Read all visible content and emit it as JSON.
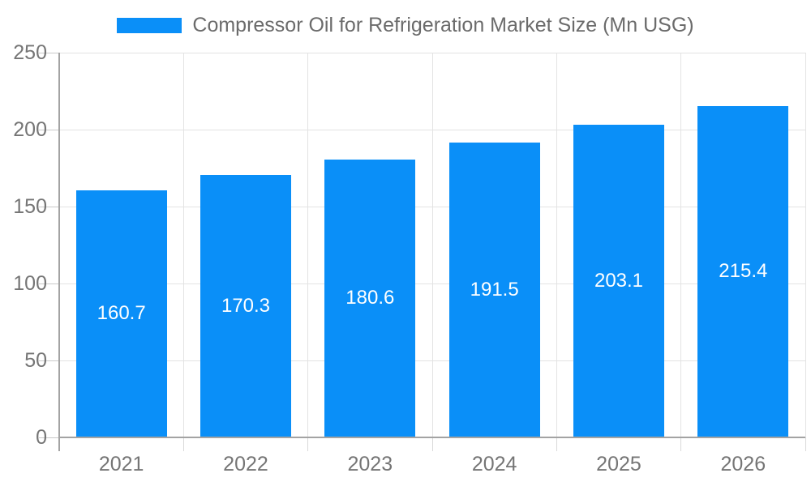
{
  "chart_data": {
    "type": "bar",
    "title": "Compressor Oil for Refrigeration Market Size (Mn USG)",
    "categories": [
      "2021",
      "2022",
      "2023",
      "2024",
      "2025",
      "2026"
    ],
    "series": [
      {
        "name": "Compressor Oil for Refrigeration Market Size (Mn USG)",
        "values": [
          160.7,
          170.3,
          180.6,
          191.5,
          203.1,
          215.4
        ]
      }
    ],
    "value_labels": [
      "160.7",
      "170.3",
      "180.6",
      "191.5",
      "203.1",
      "215.4"
    ],
    "xlabel": "",
    "ylabel": "",
    "ylim": [
      0,
      250
    ],
    "yticks": [
      0,
      50,
      100,
      150,
      200,
      250
    ],
    "grid": true,
    "legend_position": "top"
  },
  "colors": {
    "bar": "#0a8ff8",
    "value_label": "#ffffff",
    "gridline": "#e3e3e3",
    "axis_line": "#a3a3a3",
    "tick_line": "#c9c9c9",
    "bottom_tick_line": "#d9d9d9",
    "tick_label": "#757575",
    "legend_text": "#6b6b6b",
    "background": "#ffffff"
  }
}
